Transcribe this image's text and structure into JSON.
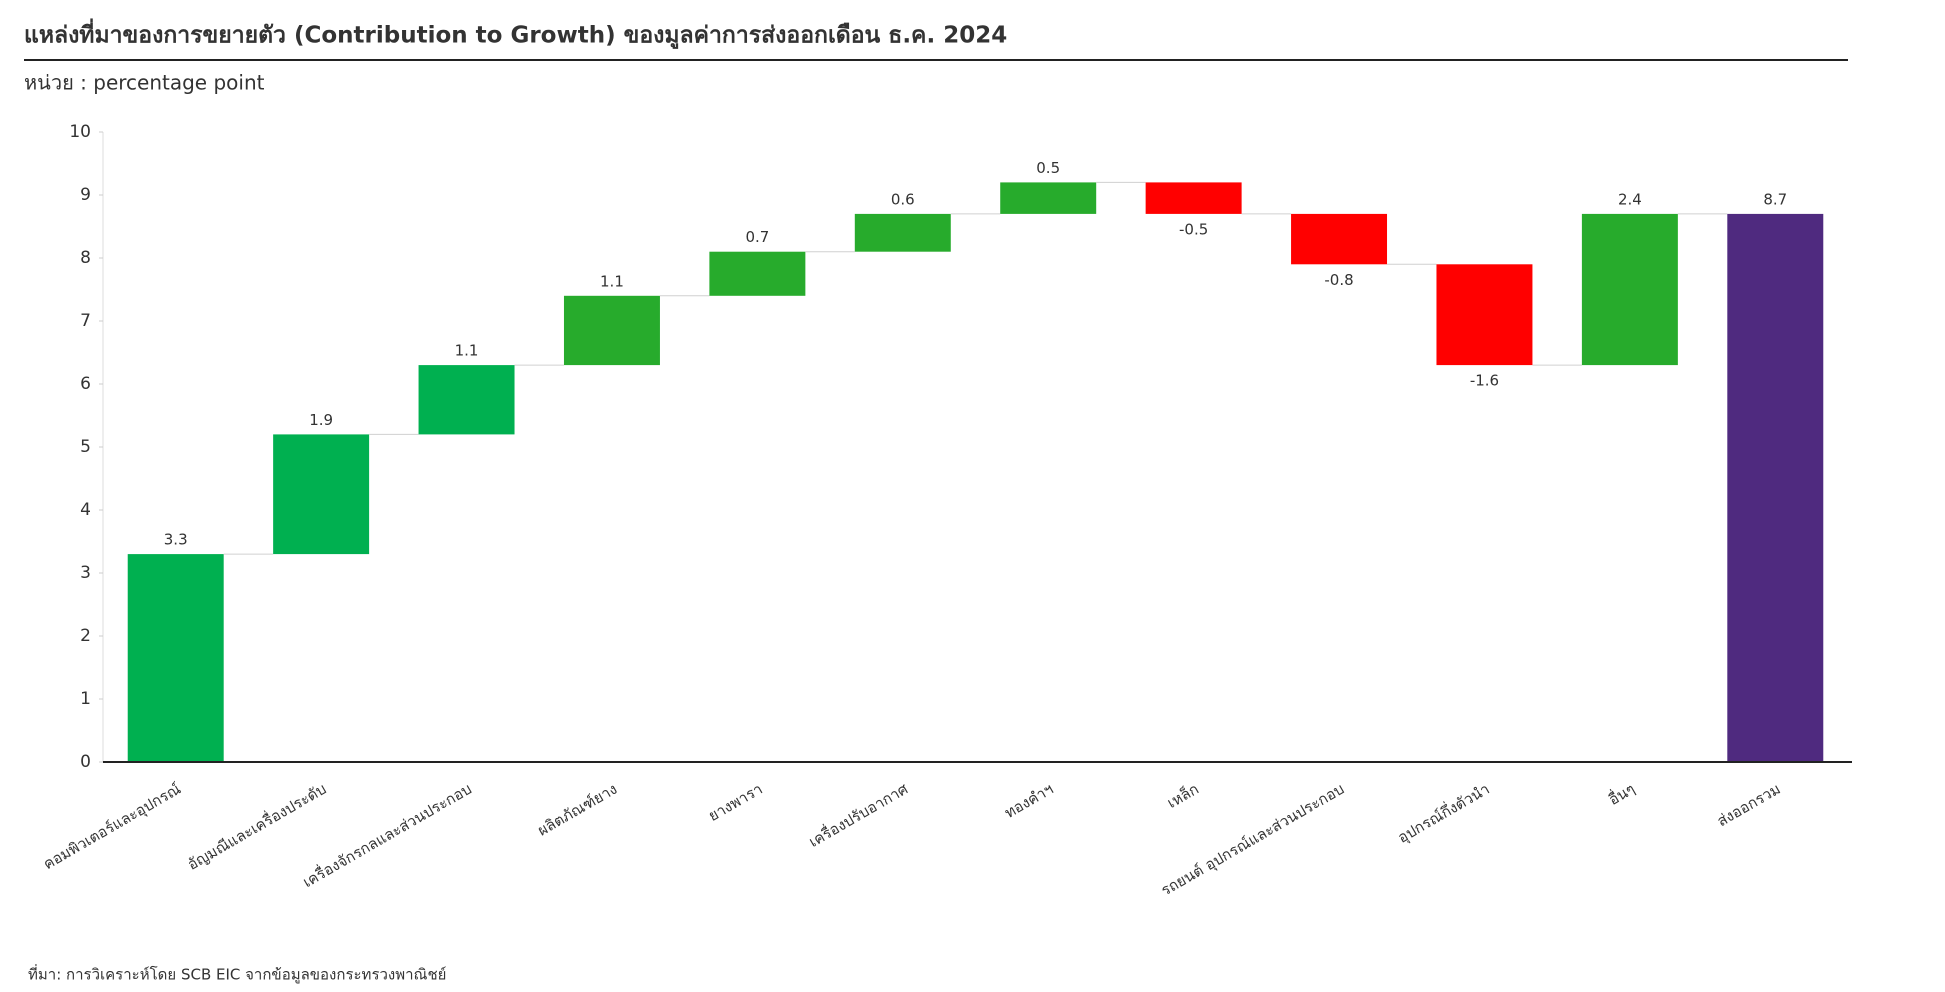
{
  "chart_data": {
    "type": "waterfall",
    "title": "แหล่งที่มาของการขยายตัว (Contribution to Growth) ของมูลค่าการส่งออกเดือน ธ.ค. 2024",
    "subtitle": "หน่วย : percentage point",
    "source": "ที่มา: การวิเคราะห์โดย SCB EIC จากข้อมูลของกระทรวงพาณิชย์",
    "categories": [
      "คอมพิวเตอร์และอุปกรณ์",
      "อัญมณีและเครื่องประดับ",
      "เครื่องจักรกลและส่วนประกอบ",
      "ผลิตภัณฑ์ยาง",
      "ยางพารา",
      "เครื่องปรับอากาศ",
      "ทองคำฯ",
      "เหล็ก",
      "รถยนต์ อุปกรณ์และส่วนประกอบ",
      "อุปกรณ์กึ่งตัวนำ",
      "อื่นๆ",
      "ส่งออกรวม"
    ],
    "values": [
      3.3,
      1.9,
      1.1,
      1.1,
      0.7,
      0.6,
      0.5,
      -0.5,
      -0.8,
      -1.6,
      2.4,
      8.7
    ],
    "is_total": [
      false,
      false,
      false,
      false,
      false,
      false,
      false,
      false,
      false,
      false,
      false,
      true
    ],
    "colors": [
      "#00b050",
      "#00b050",
      "#00b050",
      "#27ab2c",
      "#27ab2c",
      "#27ab2c",
      "#27ab2c",
      "#ff0000",
      "#ff0000",
      "#ff0000",
      "#27ab2c",
      "#4f2a7f"
    ],
    "ylim": [
      0,
      10
    ],
    "yticks": [
      0,
      1,
      2,
      3,
      4,
      5,
      6,
      7,
      8,
      9,
      10
    ],
    "grid": false
  }
}
